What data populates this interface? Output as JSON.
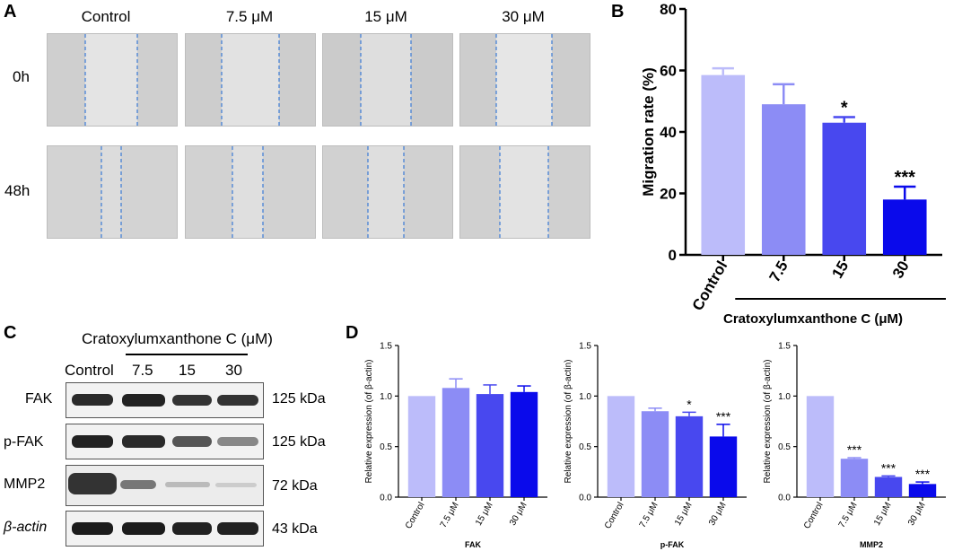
{
  "panels": {
    "a": "A",
    "b": "B",
    "c": "C",
    "d": "D"
  },
  "panel_a": {
    "columns": [
      "Control",
      "7.5 μM",
      "15 μM",
      "30 μM"
    ],
    "rows": [
      "0h",
      "48h"
    ]
  },
  "panel_c": {
    "treatment_label": "Cratoxylumxanthone C (μM)",
    "lanes": [
      "Control",
      "7.5",
      "15",
      "30"
    ],
    "blots": [
      {
        "name": "FAK",
        "size": "125 kDa"
      },
      {
        "name": "p-FAK",
        "size": "125 kDa"
      },
      {
        "name": "MMP2",
        "size": "72 kDa"
      },
      {
        "name": "β-actin",
        "size": "43 kDa"
      }
    ]
  },
  "colors": {
    "c0": "#bcbcfa",
    "c1": "#8c8cf5",
    "c2": "#4848ef",
    "c3": "#0a0aeb"
  },
  "chart_data": [
    {
      "id": "B",
      "type": "bar",
      "categories": [
        "Control",
        "7.5",
        "15",
        "30"
      ],
      "values": [
        58.5,
        49,
        43,
        18
      ],
      "errors": [
        2.2,
        6.5,
        1.8,
        4.2
      ],
      "significance": [
        "",
        "",
        "*",
        "***"
      ],
      "ylabel": "Migration rate (%)",
      "xlabel": "Cratoxylumxanthone C (μM)",
      "ylim": [
        0,
        80
      ],
      "yticks": [
        0,
        20,
        40,
        60,
        80
      ]
    },
    {
      "id": "D1",
      "type": "bar",
      "categories": [
        "Control",
        "7.5 μM",
        "15 μM",
        "30 μM"
      ],
      "values": [
        1.0,
        1.08,
        1.02,
        1.04
      ],
      "errors": [
        0,
        0.09,
        0.09,
        0.06
      ],
      "significance": [
        "",
        "",
        "",
        ""
      ],
      "ylabel": "Relative expression (of β-actin)",
      "xlabel": "FAK",
      "ylim": [
        0,
        1.5
      ],
      "yticks": [
        "0.0",
        "0.5",
        "1.0",
        "1.5"
      ]
    },
    {
      "id": "D2",
      "type": "bar",
      "categories": [
        "Control",
        "7.5 μM",
        "15 μM",
        "30 μM"
      ],
      "values": [
        1.0,
        0.85,
        0.8,
        0.6
      ],
      "errors": [
        0,
        0.03,
        0.04,
        0.12
      ],
      "significance": [
        "",
        "",
        "*",
        "***"
      ],
      "ylabel": "Relative expression (of β-actin)",
      "xlabel": "p-FAK",
      "ylim": [
        0,
        1.5
      ],
      "yticks": [
        "0.0",
        "0.5",
        "1.0",
        "1.5"
      ]
    },
    {
      "id": "D3",
      "type": "bar",
      "categories": [
        "Control",
        "7.5 μM",
        "15 μM",
        "30 μM"
      ],
      "values": [
        1.0,
        0.38,
        0.2,
        0.13
      ],
      "errors": [
        0,
        0.01,
        0.01,
        0.02
      ],
      "significance": [
        "",
        "***",
        "***",
        "***"
      ],
      "ylabel": "Relative expression (of β-actin)",
      "xlabel": "MMP2",
      "ylim": [
        0,
        1.5
      ],
      "yticks": [
        "0.0",
        "0.5",
        "1.0",
        "1.5"
      ]
    }
  ]
}
